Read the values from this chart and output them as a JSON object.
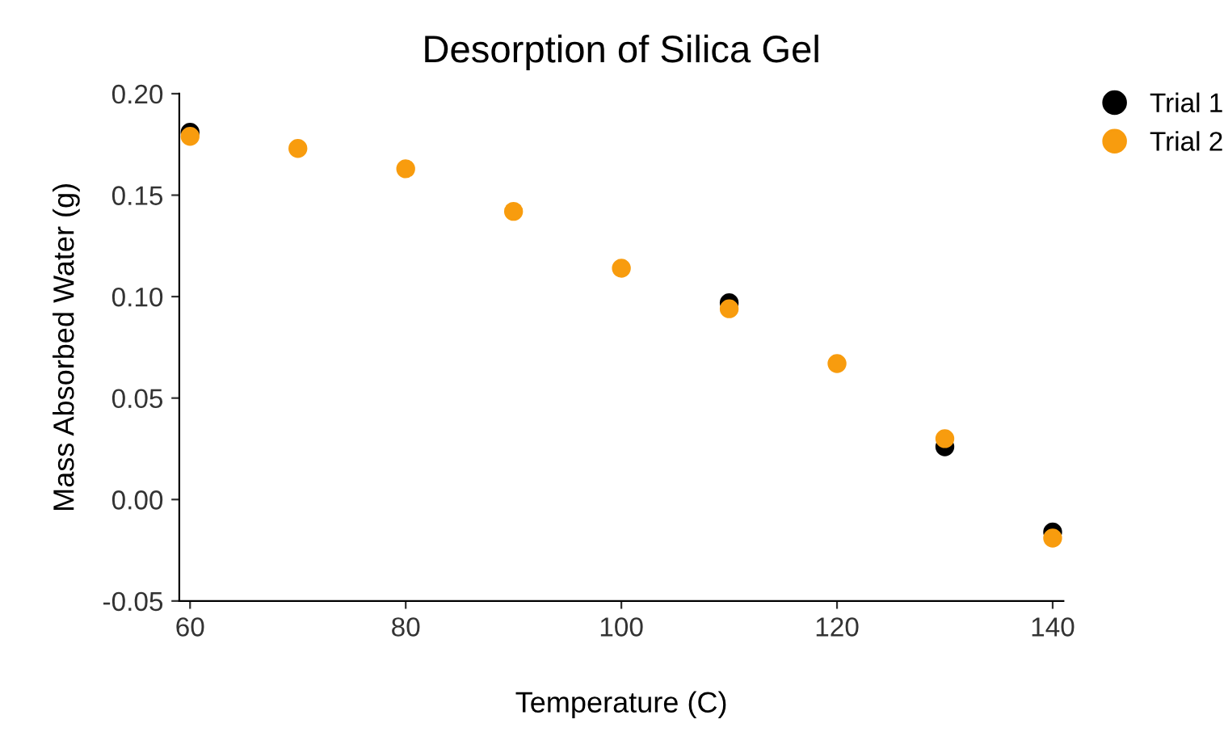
{
  "chart_data": {
    "type": "scatter",
    "title": "Desorption of Silica Gel",
    "xlabel": "Temperature (C)",
    "ylabel": "Mass Absorbed Water (g)",
    "x": [
      60,
      70,
      80,
      90,
      100,
      110,
      120,
      130,
      140
    ],
    "series": [
      {
        "name": "Trial 1",
        "color": "#000000",
        "values": [
          0.181,
          null,
          null,
          null,
          null,
          0.097,
          null,
          0.026,
          -0.016
        ]
      },
      {
        "name": "Trial 2",
        "color": "#f89c0e",
        "values": [
          0.179,
          0.173,
          0.163,
          0.142,
          0.114,
          0.094,
          0.067,
          0.03,
          -0.019
        ]
      }
    ],
    "xlim": [
      59,
      141
    ],
    "xticks": [
      60,
      80,
      100,
      120,
      140
    ],
    "ylim": [
      -0.05,
      0.2
    ],
    "yticks": [
      {
        "value": -0.05,
        "label": "-0.05"
      },
      {
        "value": 0,
        "label": "0.00"
      },
      {
        "value": 0.05,
        "label": "0.05"
      },
      {
        "value": 0.1,
        "label": "0.10"
      },
      {
        "value": 0.15,
        "label": "0.15"
      },
      {
        "value": 0.2,
        "label": "0.20"
      }
    ],
    "grid": false,
    "legend": "top right",
    "marker": "circle"
  }
}
